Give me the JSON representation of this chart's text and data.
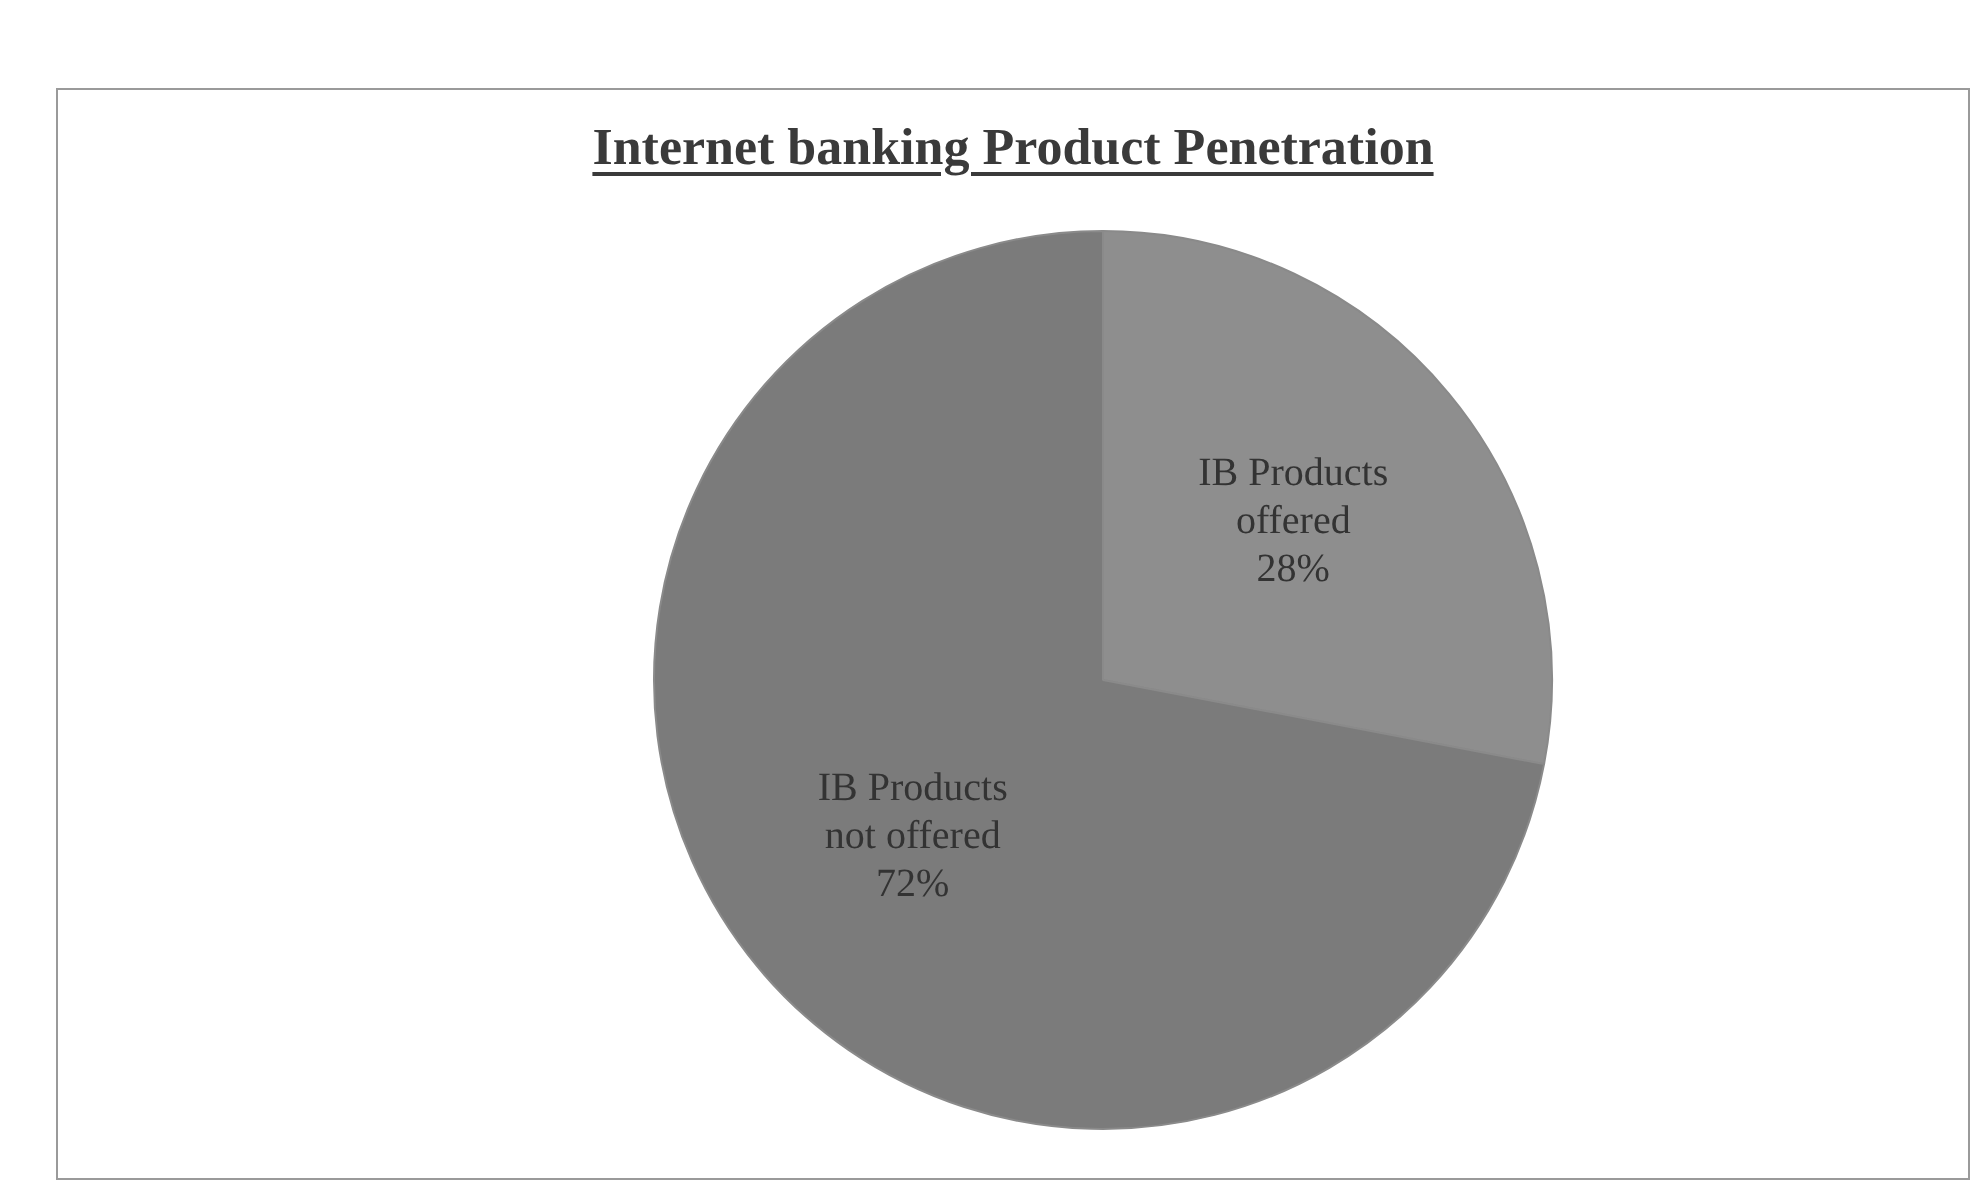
{
  "chart_data": {
    "type": "pie",
    "title": "Internet banking Product Penetration",
    "categories": [
      "IB Products offered",
      "IB Products not offered"
    ],
    "values": [
      28,
      72
    ],
    "value_labels": [
      "28%",
      "72%"
    ],
    "colors": [
      "#8e8e8e",
      "#7b7b7b"
    ],
    "legend": false
  }
}
